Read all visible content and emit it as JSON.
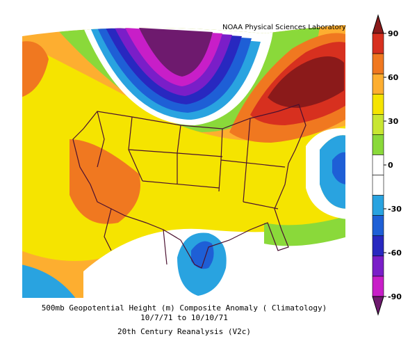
{
  "credit": "NOAA Physical Sciences Laboratory",
  "caption": {
    "line1": "500mb Geopotential Height (m) Composite Anomaly ( Climatology)",
    "line2": "10/7/71  to 10/10/71",
    "line3": "20th Century Reanalysis (V2c)"
  },
  "colorbar": {
    "ticks": [
      "90",
      "60",
      "30",
      "0",
      "-30",
      "-60",
      "-90"
    ],
    "colors": [
      "#8b1a1a",
      "#d7301f",
      "#f07820",
      "#fdae30",
      "#f5e400",
      "#c8e632",
      "#8ad93a",
      "#ffffff",
      "#ffffff",
      "#29a3e0",
      "#1e5fd6",
      "#2828c0",
      "#7a1ec8",
      "#c81ec8",
      "#6e1a6e"
    ]
  }
}
